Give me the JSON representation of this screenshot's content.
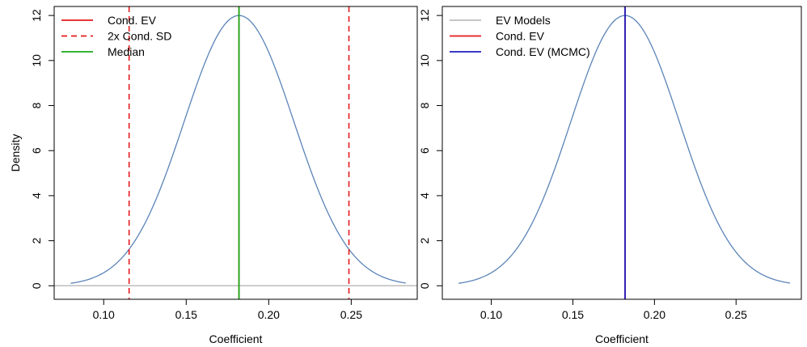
{
  "chart_data": [
    {
      "type": "line",
      "xlabel": "Coefficient",
      "ylabel": "Density",
      "xlim": [
        0.07,
        0.29
      ],
      "ylim": [
        -0.6,
        12.4
      ],
      "x_ticks": [
        0.1,
        0.15,
        0.2,
        0.25
      ],
      "x_tick_labels": [
        "0.10",
        "0.15",
        "0.20",
        "0.25"
      ],
      "y_ticks": [
        0,
        2,
        4,
        6,
        8,
        10,
        12
      ],
      "y_tick_labels": [
        "0",
        "2",
        "4",
        "6",
        "8",
        "10",
        "12"
      ],
      "density": {
        "mean": 0.182,
        "sd": 0.0333,
        "x_range": [
          0.08,
          0.283
        ],
        "peak": 12.0
      },
      "reference_lines": [
        {
          "name": "Cond. EV",
          "x": 0.182,
          "color": "#e41a1c",
          "dash": "solid"
        },
        {
          "name": "2x Cond. SD",
          "x": 0.1154,
          "color": "#e41a1c",
          "dash": "dashed"
        },
        {
          "name": "2x Cond. SD",
          "x": 0.2486,
          "color": "#e41a1c",
          "dash": "dashed"
        },
        {
          "name": "Median",
          "x": 0.182,
          "color": "#1aaa1a",
          "dash": "solid"
        }
      ],
      "baseline": {
        "y": 0,
        "color": "#bdbdbd"
      },
      "legend": {
        "position": "top-left",
        "entries": [
          {
            "label": "Cond. EV",
            "color": "#e41a1c",
            "dash": "solid"
          },
          {
            "label": "2x Cond. SD",
            "color": "#e41a1c",
            "dash": "dashed"
          },
          {
            "label": "Median",
            "color": "#1aaa1a",
            "dash": "solid"
          }
        ]
      },
      "curve_color": "#5b84b8"
    },
    {
      "type": "line",
      "xlabel": "Coefficient",
      "ylabel": "",
      "xlim": [
        0.07,
        0.29
      ],
      "ylim": [
        -0.6,
        12.4
      ],
      "x_ticks": [
        0.1,
        0.15,
        0.2,
        0.25
      ],
      "x_tick_labels": [
        "0.10",
        "0.15",
        "0.20",
        "0.25"
      ],
      "y_ticks": [
        0,
        2,
        4,
        6,
        8,
        10,
        12
      ],
      "y_tick_labels": [
        "0",
        "2",
        "4",
        "6",
        "8",
        "10",
        "12"
      ],
      "density": {
        "mean": 0.182,
        "sd": 0.0333,
        "x_range": [
          0.08,
          0.283
        ],
        "peak": 12.0
      },
      "reference_lines": [
        {
          "name": "Cond. EV",
          "x": 0.182,
          "color": "#e41a1c",
          "dash": "solid"
        },
        {
          "name": "Cond. EV (MCMC)",
          "x": 0.182,
          "color": "#1f1fbf",
          "dash": "solid"
        }
      ],
      "legend": {
        "position": "top-left",
        "entries": [
          {
            "label": "EV Models",
            "color": "#bdbdbd",
            "dash": "solid"
          },
          {
            "label": "Cond. EV",
            "color": "#e41a1c",
            "dash": "solid"
          },
          {
            "label": "Cond. EV (MCMC)",
            "color": "#1f1fbf",
            "dash": "solid"
          }
        ]
      },
      "curve_color": "#5b84b8"
    }
  ]
}
